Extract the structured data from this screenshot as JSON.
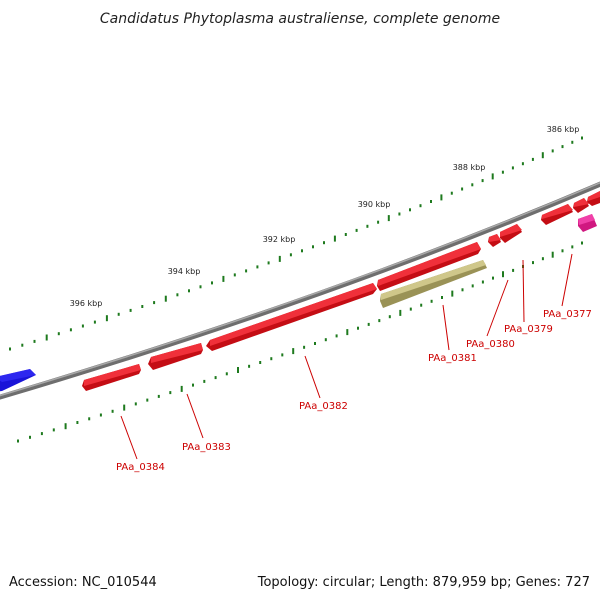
{
  "title": "Candidatus Phytoplasma australiense, complete genome",
  "footer": {
    "accession": "Accession: NC_010544",
    "summary": "Topology: circular; Length: 879,959 bp; Genes: 727"
  },
  "colors": {
    "backbone": "#7a7a7a",
    "gene": "#e8141c",
    "gene_other": "#b8b070",
    "gene_pink": "#e0208c",
    "gene_blue": "#1a14d8",
    "tick": "#1e7a1e",
    "label": "#cc0000"
  },
  "kbp_labels": [
    {
      "text": "386 kbp"
    },
    {
      "text": "388 kbp"
    },
    {
      "text": "390 kbp"
    },
    {
      "text": "392 kbp"
    },
    {
      "text": "394 kbp"
    },
    {
      "text": "396 kbp"
    }
  ],
  "gene_labels": [
    {
      "text": "PAa_0377"
    },
    {
      "text": "PAa_0379"
    },
    {
      "text": "PAa_0380"
    },
    {
      "text": "PAa_0381"
    },
    {
      "text": "PAa_0382"
    },
    {
      "text": "PAa_0383"
    },
    {
      "text": "PAa_0384"
    }
  ]
}
